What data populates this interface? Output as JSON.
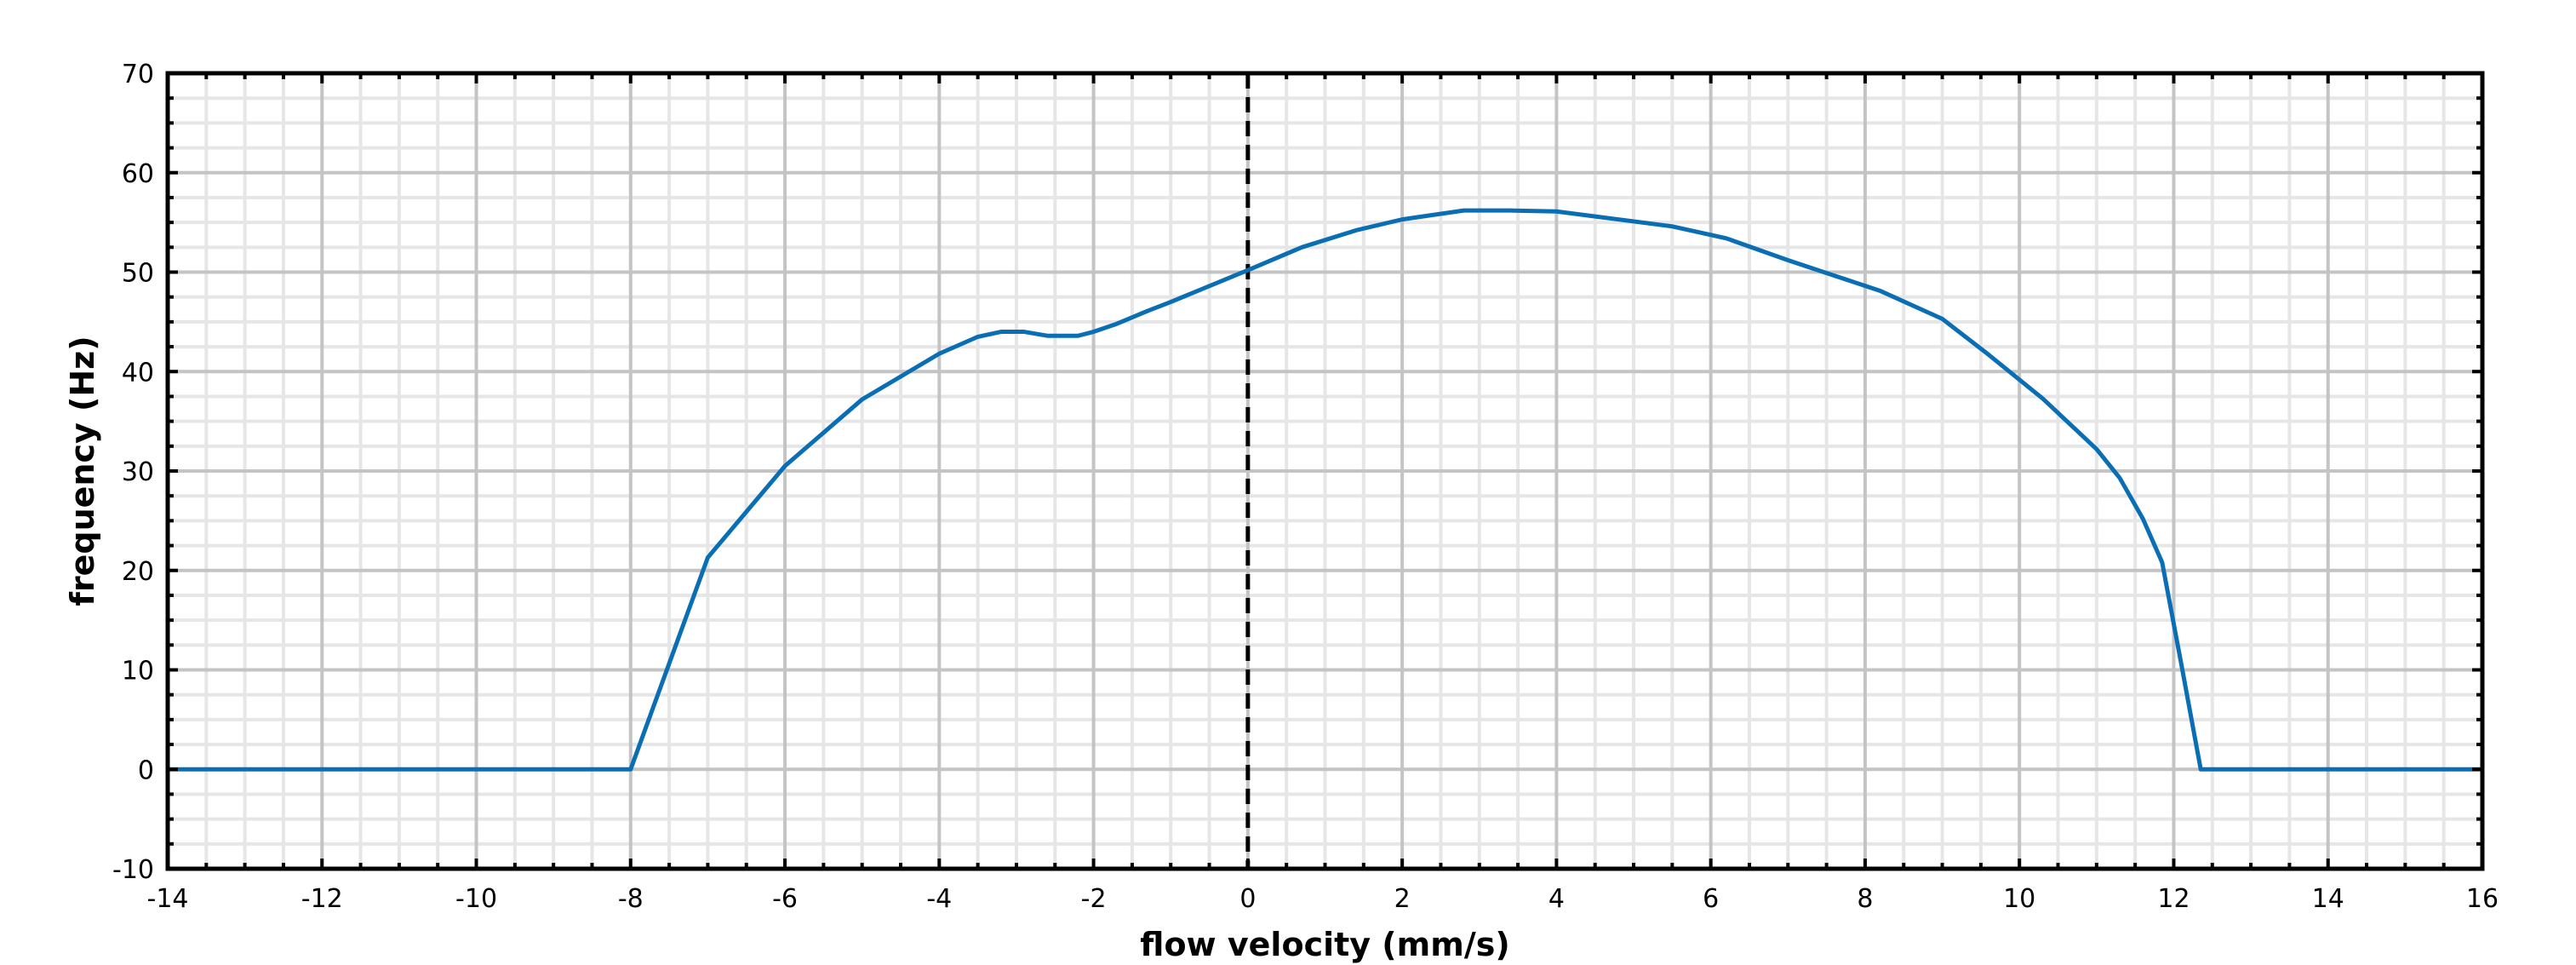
{
  "chart_data": {
    "type": "line",
    "title": "",
    "xlabel": "flow velocity (mm/s)",
    "ylabel": "frequency (Hz)",
    "xlim": [
      -14,
      16
    ],
    "ylim": [
      -10,
      70
    ],
    "xticks": [
      -14,
      -12,
      -10,
      -8,
      -6,
      -4,
      -2,
      0,
      2,
      4,
      6,
      8,
      10,
      12,
      14,
      16
    ],
    "yticks": [
      -10,
      0,
      10,
      20,
      30,
      40,
      50,
      60,
      70
    ],
    "grid": true,
    "minor_grid": true,
    "legend": "none",
    "reference_line": {
      "x": 0,
      "style": "dashed",
      "color": "#000000"
    },
    "series": [
      {
        "color": "#0a6eb4",
        "x": [
          -14,
          -8,
          -7,
          -6,
          -5,
          -4,
          -3.5,
          -3.2,
          -2.9,
          -2.6,
          -2.2,
          -2.0,
          -1.7,
          -1.3,
          -1.0,
          0,
          0.7,
          1.4,
          2.0,
          2.8,
          3.4,
          4.0,
          5.5,
          6.2,
          7.0,
          8.2,
          9.0,
          9.6,
          10.3,
          11.0,
          11.3,
          11.6,
          11.85,
          12.1,
          12.35,
          16
        ],
        "y": [
          0,
          0,
          21.3,
          30.5,
          37.2,
          41.8,
          43.5,
          44.0,
          44.0,
          43.6,
          43.6,
          44.0,
          44.8,
          46.1,
          47.0,
          50.2,
          52.5,
          54.2,
          55.3,
          56.2,
          56.2,
          56.1,
          54.6,
          53.4,
          51.2,
          48.1,
          45.3,
          41.7,
          37.3,
          32.2,
          29.3,
          25.2,
          20.8,
          10.5,
          0,
          0
        ]
      }
    ]
  }
}
